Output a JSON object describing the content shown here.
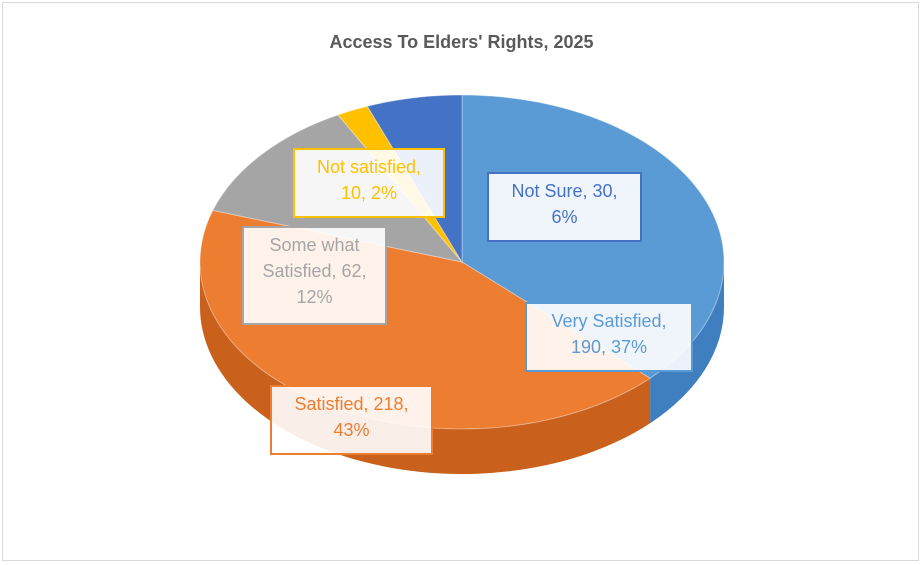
{
  "chart_data": {
    "type": "pie",
    "title": "Access To Elders' Rights, 2025",
    "slices": [
      {
        "name": "Very  Satisfied",
        "value": 190,
        "percent": "37%",
        "color": "#5b9bd5",
        "dark": "#3f7fbf",
        "label_line1": "Very  Satisfied,",
        "label_line2": "190, 37%"
      },
      {
        "name": "Satisfied",
        "value": 218,
        "percent": "43%",
        "color": "#ed7d31",
        "dark": "#c9611d",
        "label_line1": "Satisfied, 218,",
        "label_line2": "43%"
      },
      {
        "name": "Some what Satisfied",
        "value": 62,
        "percent": "12%",
        "color": "#a5a5a5",
        "dark": "#8a8a8a",
        "label_line1": "Some what",
        "label_line2": "Satisfied, 62,",
        "label_line3": "12%"
      },
      {
        "name": "Not satisfied",
        "value": 10,
        "percent": "2%",
        "color": "#ffc000",
        "dark": "#d9a300",
        "label_line1": "Not satisfied,",
        "label_line2": "10, 2%"
      },
      {
        "name": "Not Sure",
        "value": 30,
        "percent": "6%",
        "color": "#4472c4",
        "dark": "#2f5597",
        "label_line1": "Not Sure, 30,",
        "label_line2": "6%"
      }
    ],
    "start_angle_deg": 0,
    "direction": "clockwise",
    "legend": "none",
    "style": "3d"
  }
}
